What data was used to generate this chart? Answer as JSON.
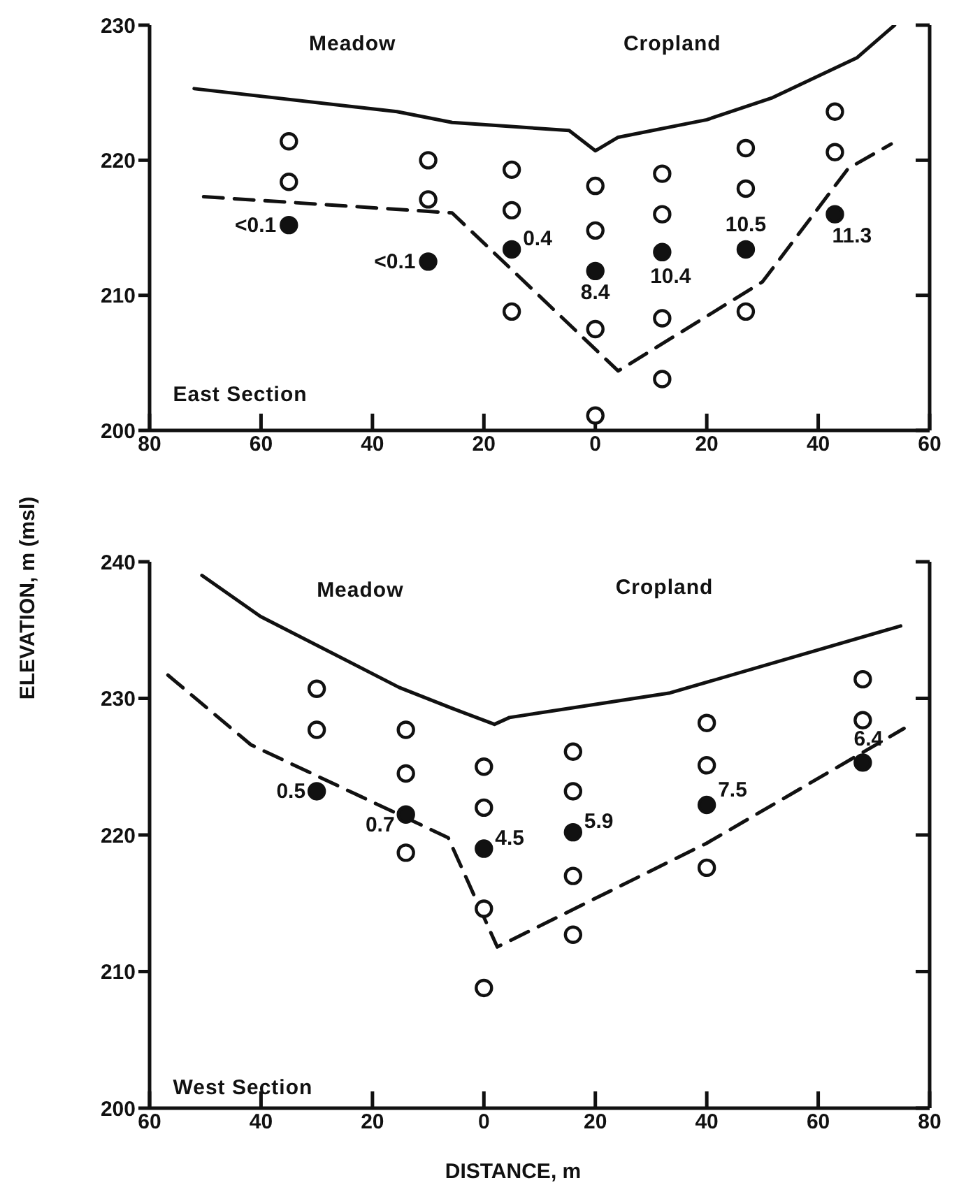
{
  "chart_data": [
    {
      "type": "scatter",
      "ylabel": "ELEVATION, m (msl)",
      "annotations": [
        "Meadow",
        "Cropland",
        "East Section",
        {
          "text": "<0.1",
          "x": -55,
          "y": 215.2
        },
        {
          "text": "<0.1",
          "x": -30,
          "y": 212.5
        },
        {
          "text": "0.4",
          "x": -15,
          "y": 213.4
        },
        {
          "text": "8.4",
          "x": 0,
          "y": 211.8
        },
        {
          "text": "10.4",
          "x": 12,
          "y": 213.2
        },
        {
          "text": "10.5",
          "x": 27,
          "y": 213.4
        },
        {
          "text": "11.3",
          "x": 43,
          "y": 216
        }
      ],
      "xlim": [
        -80,
        60
      ],
      "xticks": [
        {
          "value": -80,
          "label": "80"
        },
        {
          "value": -60,
          "label": "60"
        },
        {
          "value": -40,
          "label": "40"
        },
        {
          "value": -20,
          "label": "20"
        },
        0,
        20,
        40,
        60
      ],
      "ylim": [
        200,
        230
      ],
      "yticks": [
        200,
        210,
        220,
        230
      ],
      "grid": false,
      "legend": false,
      "series": [
        {
          "type": "line",
          "color": "#111111",
          "line_style": "solid",
          "marker": "none",
          "x": [
            -72,
            -35.6,
            -25.7,
            -4.7,
            0,
            4.1,
            20,
            31.6,
            47,
            53.7
          ],
          "values": [
            225.3,
            223.6,
            222.8,
            222.2,
            220.7,
            221.7,
            223,
            224.6,
            227.6,
            230
          ]
        },
        {
          "type": "line",
          "color": "#111111",
          "line_style": "dashed",
          "marker": "none",
          "x": [
            -70.3,
            -25.7,
            4.1,
            30,
            45.4,
            53.1
          ],
          "values": [
            217.3,
            216.1,
            204.4,
            211,
            219.4,
            221.2
          ]
        },
        {
          "color": "#ffffff",
          "marker": "circle",
          "x": [
            -55,
            -55,
            -30,
            -30,
            -15,
            -15,
            -15,
            0,
            0,
            0,
            0,
            12,
            12,
            12,
            12,
            27,
            27,
            27,
            43,
            43
          ],
          "values": [
            221.4,
            218.4,
            220,
            217.1,
            219.3,
            216.3,
            208.8,
            218.1,
            214.8,
            207.5,
            201.1,
            219,
            216,
            208.3,
            203.8,
            220.9,
            217.9,
            208.8,
            223.6,
            220.6
          ]
        },
        {
          "color": "#111111",
          "marker": "circle",
          "x": [
            -55,
            -30,
            -15,
            0,
            12,
            27,
            43
          ],
          "values": [
            215.2,
            212.5,
            213.4,
            211.8,
            213.2,
            213.4,
            216
          ]
        }
      ]
    },
    {
      "type": "scatter",
      "xlabel": "DISTANCE, m",
      "annotations": [
        "Meadow",
        "Cropland",
        "West Section",
        {
          "text": "0.5",
          "x": -30,
          "y": 223.2
        },
        {
          "text": "0.7",
          "x": -14,
          "y": 221.5
        },
        {
          "text": "4.5",
          "x": 0,
          "y": 219
        },
        {
          "text": "5.9",
          "x": 16,
          "y": 220.2
        },
        {
          "text": "7.5",
          "x": 40,
          "y": 222.2
        },
        {
          "text": "6.4",
          "x": 68,
          "y": 225.3
        }
      ],
      "xlim": [
        -60,
        80
      ],
      "xticks": [
        {
          "value": -60,
          "label": "60"
        },
        {
          "value": -40,
          "label": "40"
        },
        {
          "value": -20,
          "label": "20"
        },
        0,
        20,
        40,
        60,
        80
      ],
      "ylim": [
        200,
        240
      ],
      "yticks": [
        200,
        210,
        220,
        230,
        240
      ],
      "grid": false,
      "legend": false,
      "series": [
        {
          "type": "line",
          "color": "#111111",
          "line_style": "solid",
          "marker": "none",
          "x": [
            -50.6,
            -40.1,
            -15.2,
            -5.9,
            1.9,
            4.6,
            33.4,
            74.8
          ],
          "values": [
            239,
            236,
            230.8,
            229.3,
            228.1,
            228.6,
            230.4,
            235.3
          ]
        },
        {
          "type": "line",
          "color": "#111111",
          "line_style": "dashed",
          "marker": "none",
          "x": [
            -56.7,
            -41.8,
            -6.4,
            2.4,
            40,
            75.4
          ],
          "values": [
            231.7,
            226.6,
            219.8,
            211.8,
            219.4,
            227.8
          ]
        },
        {
          "color": "#ffffff",
          "marker": "circle",
          "x": [
            -30,
            -30,
            -14,
            -14,
            -14,
            0,
            0,
            0,
            0,
            16,
            16,
            16,
            16,
            40,
            40,
            40,
            68,
            68
          ],
          "values": [
            230.7,
            227.7,
            227.7,
            224.5,
            218.7,
            225,
            222,
            214.6,
            208.8,
            226.1,
            223.2,
            217,
            212.7,
            228.2,
            225.1,
            217.6,
            231.4,
            228.4
          ]
        },
        {
          "color": "#111111",
          "marker": "circle",
          "x": [
            -30,
            -14,
            0,
            16,
            40,
            68
          ],
          "values": [
            223.2,
            221.5,
            219,
            220.2,
            222.2,
            225.3
          ]
        }
      ]
    }
  ]
}
